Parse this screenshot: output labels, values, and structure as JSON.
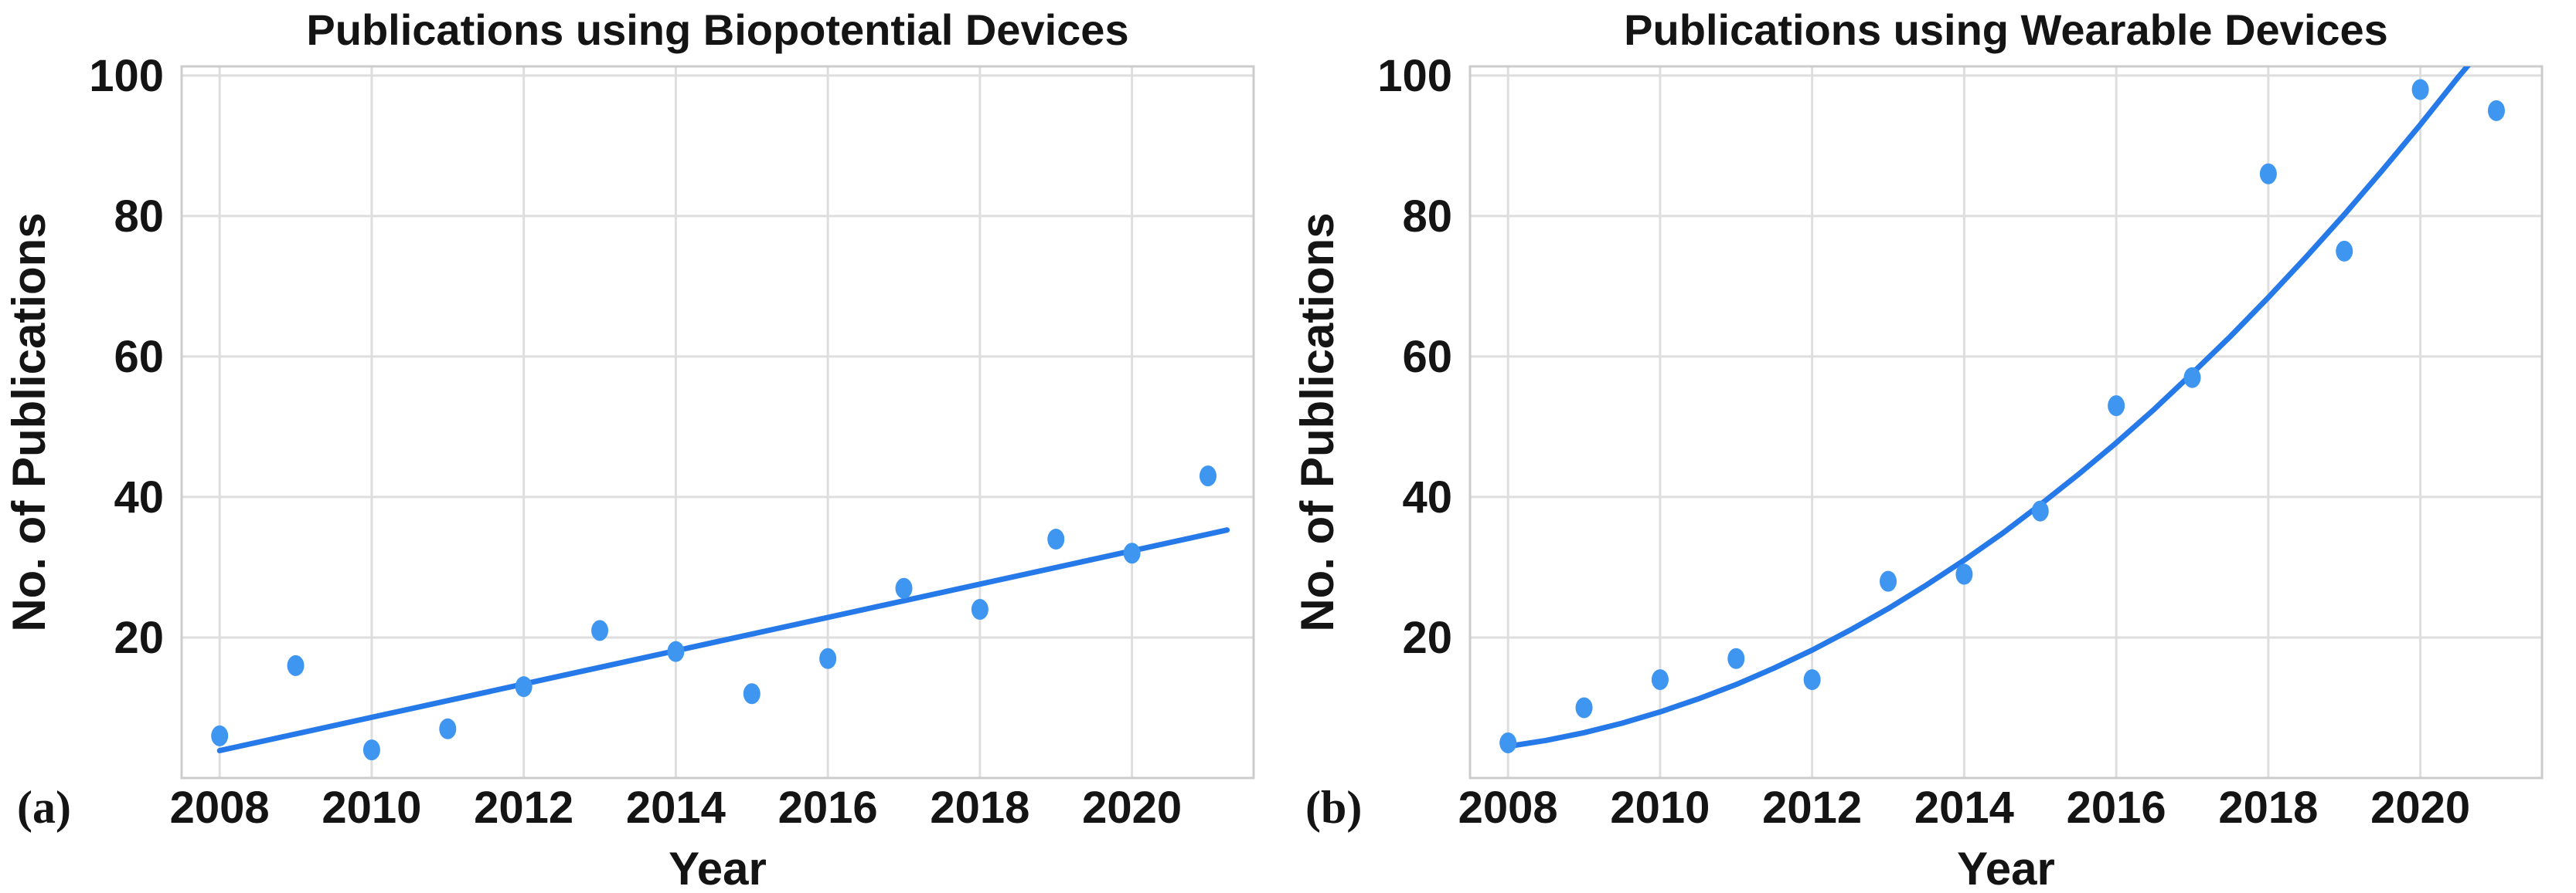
{
  "figure": {
    "background": "#ffffff"
  },
  "chart_data": [
    {
      "type": "scatter",
      "panel_label": "(a)",
      "title": "Publications using Biopotential Devices",
      "xlabel": "Year",
      "ylabel": "No. of Publications",
      "x_ticks": [
        "2008",
        "2010",
        "2012",
        "2014",
        "2016",
        "2018",
        "2020"
      ],
      "x_tick_values": [
        2008,
        2010,
        2012,
        2014,
        2016,
        2018,
        2020
      ],
      "y_ticks": [
        "20",
        "40",
        "60",
        "80",
        "100"
      ],
      "y_tick_values": [
        20,
        40,
        60,
        80,
        100
      ],
      "x_range": [
        2007.5,
        2021.6
      ],
      "y_range": [
        0,
        101.3
      ],
      "grid": true,
      "legend": null,
      "x": [
        2008,
        2009,
        2010,
        2011,
        2012,
        2013,
        2014,
        2015,
        2016,
        2017,
        2018,
        2019,
        2020,
        2021
      ],
      "y": [
        6,
        16,
        4,
        7,
        13,
        21,
        18,
        12,
        17,
        27,
        24,
        34,
        32,
        43
      ],
      "trend": {
        "type": "linear",
        "points": [
          [
            2008,
            3.9
          ],
          [
            2021.25,
            35.3
          ]
        ]
      },
      "colors": {
        "scatter": "#3e96f0",
        "trend_line": "#2679e8",
        "grid": "#dedede",
        "spine": "#cccccc",
        "text": "#141414"
      }
    },
    {
      "type": "scatter",
      "panel_label": "(b)",
      "title": "Publications using Wearable Devices",
      "xlabel": "Year",
      "ylabel": "No. of Publications",
      "x_ticks": [
        "2008",
        "2010",
        "2012",
        "2014",
        "2016",
        "2018",
        "2020"
      ],
      "x_tick_values": [
        2008,
        2010,
        2012,
        2014,
        2016,
        2018,
        2020
      ],
      "y_ticks": [
        "20",
        "40",
        "60",
        "80",
        "100"
      ],
      "y_tick_values": [
        20,
        40,
        60,
        80,
        100
      ],
      "x_range": [
        2007.5,
        2021.6
      ],
      "y_range": [
        0,
        101.3
      ],
      "grid": true,
      "legend": null,
      "x": [
        2008,
        2009,
        2010,
        2011,
        2012,
        2013,
        2014,
        2015,
        2016,
        2017,
        2018,
        2019,
        2020,
        2021
      ],
      "y": [
        5,
        10,
        14,
        17,
        14,
        28,
        29,
        38,
        53,
        57,
        86,
        75,
        98,
        95
      ],
      "trend": {
        "type": "exponential",
        "points": [
          [
            2008,
            4.5
          ],
          [
            2008.5,
            5.35
          ],
          [
            2009,
            6.45
          ],
          [
            2009.5,
            7.8
          ],
          [
            2010,
            9.4
          ],
          [
            2010.5,
            11.25
          ],
          [
            2011,
            13.3
          ],
          [
            2011.5,
            15.65
          ],
          [
            2012,
            18.2
          ],
          [
            2012.5,
            21.05
          ],
          [
            2013,
            24.1
          ],
          [
            2013.5,
            27.45
          ],
          [
            2014,
            31.0
          ],
          [
            2014.5,
            34.8
          ],
          [
            2015,
            38.9
          ],
          [
            2015.5,
            43.2
          ],
          [
            2016,
            47.7
          ],
          [
            2016.5,
            52.5
          ],
          [
            2017,
            57.6
          ],
          [
            2017.5,
            62.85
          ],
          [
            2018,
            68.4
          ],
          [
            2018.5,
            74.2
          ],
          [
            2019,
            80.2
          ],
          [
            2019.5,
            86.5
          ],
          [
            2020,
            93.0
          ],
          [
            2020.5,
            99.8
          ],
          [
            2020.75,
            103.0
          ]
        ]
      },
      "colors": {
        "scatter": "#3e96f0",
        "trend_line": "#2679e8",
        "grid": "#dedede",
        "spine": "#cccccc",
        "text": "#141414"
      }
    }
  ]
}
